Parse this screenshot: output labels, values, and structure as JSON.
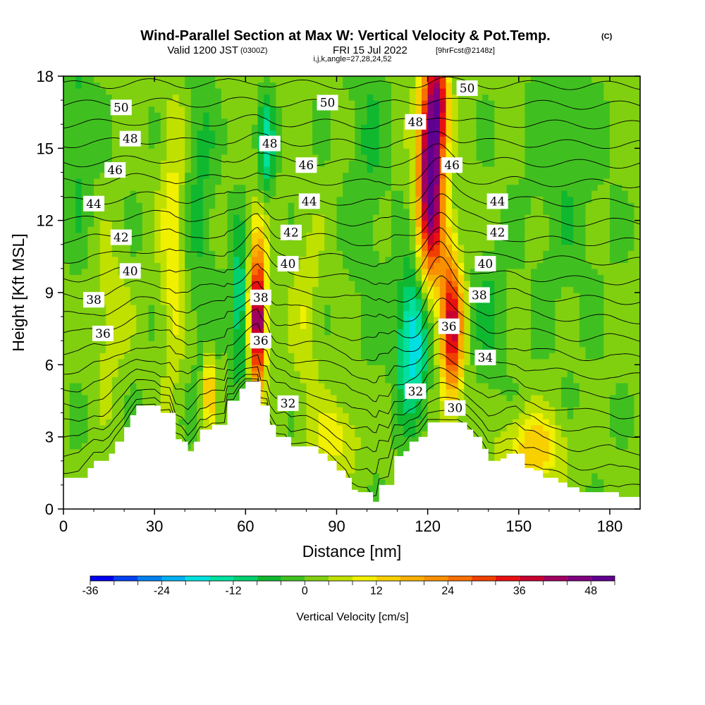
{
  "header": {
    "title": "Wind-Parallel Section at Max W: Vertical Velocity & Pot.Temp.",
    "copyright": "(C)",
    "valid_prefix": "Valid 1200 JST",
    "valid_utc": "(0300Z)",
    "valid_date": "FRI 15 Jul 2022",
    "forecast": "[9hrFcst@2148z]",
    "params": "i,j,k,angle=27,28,24,52"
  },
  "chart_data": {
    "type": "heatmap",
    "xlabel": "Distance [nm]",
    "ylabel": "Height [Kft MSL]",
    "xlim": [
      0,
      190
    ],
    "ylim": [
      0,
      18
    ],
    "x_ticks": [
      "0",
      "30",
      "60",
      "90",
      "120",
      "150",
      "180"
    ],
    "y_ticks": [
      "0",
      "3",
      "6",
      "9",
      "12",
      "15",
      "18"
    ],
    "colorbar": {
      "label": "Vertical Velocity [cm/s]",
      "min": -36,
      "max": 52,
      "step": 4,
      "tick_labels": [
        "-36",
        "-24",
        "-12",
        "0",
        "12",
        "24",
        "36",
        "48"
      ],
      "colors": [
        "#0000f0",
        "#0040f0",
        "#0080f0",
        "#00b0f0",
        "#00e0e0",
        "#00e0a0",
        "#00d070",
        "#10b830",
        "#40c020",
        "#80d010",
        "#c0e000",
        "#f0f000",
        "#f8d000",
        "#f8b000",
        "#f89000",
        "#f87000",
        "#f04000",
        "#e81010",
        "#c80030",
        "#a00060",
        "#800080",
        "#600090"
      ]
    },
    "terrain": [
      [
        0,
        1.3
      ],
      [
        5,
        1.3
      ],
      [
        8,
        1.7
      ],
      [
        10,
        2.0
      ],
      [
        13,
        2.0
      ],
      [
        15,
        2.3
      ],
      [
        17,
        2.8
      ],
      [
        20,
        3.4
      ],
      [
        22,
        3.9
      ],
      [
        24,
        4.3
      ],
      [
        30,
        4.3
      ],
      [
        32,
        4.0
      ],
      [
        35,
        4.0
      ],
      [
        37,
        2.9
      ],
      [
        39,
        2.8
      ],
      [
        41,
        2.4
      ],
      [
        43,
        2.8
      ],
      [
        45,
        3.3
      ],
      [
        47,
        3.3
      ],
      [
        49,
        3.5
      ],
      [
        53,
        3.5
      ],
      [
        54,
        4.5
      ],
      [
        56,
        4.5
      ],
      [
        58,
        5.0
      ],
      [
        60,
        5.3
      ],
      [
        64,
        5.3
      ],
      [
        65,
        4.3
      ],
      [
        67,
        4.3
      ],
      [
        68,
        3.5
      ],
      [
        70,
        3.0
      ],
      [
        73,
        3.0
      ],
      [
        75,
        2.6
      ],
      [
        80,
        2.6
      ],
      [
        84,
        2.3
      ],
      [
        87,
        2.0
      ],
      [
        90,
        1.6
      ],
      [
        93,
        1.3
      ],
      [
        95,
        0.8
      ],
      [
        97,
        0.7
      ],
      [
        100,
        0.7
      ],
      [
        102,
        0.3
      ],
      [
        103,
        0.3
      ],
      [
        104,
        1.0
      ],
      [
        107,
        1.0
      ],
      [
        109,
        2.2
      ],
      [
        112,
        2.4
      ],
      [
        114,
        2.8
      ],
      [
        117,
        3.0
      ],
      [
        120,
        3.6
      ],
      [
        130,
        3.6
      ],
      [
        133,
        3.3
      ],
      [
        135,
        3.0
      ],
      [
        138,
        2.5
      ],
      [
        140,
        2.0
      ],
      [
        142,
        2.0
      ],
      [
        144,
        2.1
      ],
      [
        146,
        2.3
      ],
      [
        149,
        2.3
      ],
      [
        152,
        1.7
      ],
      [
        155,
        1.6
      ],
      [
        158,
        1.3
      ],
      [
        163,
        1.1
      ],
      [
        166,
        0.9
      ],
      [
        170,
        0.7
      ],
      [
        180,
        0.7
      ],
      [
        183,
        0.5
      ],
      [
        190,
        0.5
      ]
    ],
    "w_field": {
      "background": 1,
      "features": [
        {
          "x": 121,
          "z": 14.5,
          "sx": 4,
          "sz": 4,
          "value": 50
        },
        {
          "x": 124,
          "z": 17,
          "sx": 3,
          "sz": 2,
          "value": 25
        },
        {
          "x": 128,
          "z": 7.5,
          "sx": 3.5,
          "sz": 3,
          "value": 36
        },
        {
          "x": 122,
          "z": 11,
          "sx": 6,
          "sz": 3,
          "value": 10
        },
        {
          "x": 64,
          "z": 7.5,
          "sx": 2.5,
          "sz": 2.5,
          "value": 42
        },
        {
          "x": 64,
          "z": 10,
          "sx": 3,
          "sz": 2.5,
          "value": 14
        },
        {
          "x": 48,
          "z": 5,
          "sx": 1.5,
          "sz": 1.5,
          "value": 20
        },
        {
          "x": 115,
          "z": 7,
          "sx": 5,
          "sz": 3,
          "value": -22
        },
        {
          "x": 58,
          "z": 8.5,
          "sx": 3,
          "sz": 3,
          "value": -14
        },
        {
          "x": 67,
          "z": 15,
          "sx": 2.5,
          "sz": 2,
          "value": -15
        },
        {
          "x": 36,
          "z": 11,
          "sx": 4,
          "sz": 6,
          "value": 10
        },
        {
          "x": 155,
          "z": 2.5,
          "sx": 10,
          "sz": 1.5,
          "value": 14
        },
        {
          "x": 90,
          "z": 3,
          "sx": 8,
          "sz": 1.5,
          "value": 9
        },
        {
          "x": 5,
          "z": 16,
          "sx": 5,
          "sz": 5,
          "value": -6
        },
        {
          "x": 100,
          "z": 15,
          "sx": 6,
          "sz": 7,
          "value": -5
        },
        {
          "x": 165,
          "z": 14,
          "sx": 12,
          "sz": 6,
          "value": -4
        },
        {
          "x": 45,
          "z": 13,
          "sx": 5,
          "sz": 6,
          "value": -6
        },
        {
          "x": 140,
          "z": 8,
          "sx": 5,
          "sz": 3,
          "value": -6
        },
        {
          "x": 80,
          "z": 8,
          "sx": 5,
          "sz": 4,
          "value": 6
        },
        {
          "x": 15,
          "z": 8,
          "sx": 6,
          "sz": 3,
          "value": 6
        }
      ]
    },
    "theta_contours": {
      "first": 30,
      "last": 51,
      "interval": 1,
      "labeled": [
        {
          "value": "50",
          "x": 19,
          "z": 16.7
        },
        {
          "value": "48",
          "x": 22,
          "z": 15.4
        },
        {
          "value": "46",
          "x": 17,
          "z": 14.1
        },
        {
          "value": "44",
          "x": 10,
          "z": 12.7
        },
        {
          "value": "42",
          "x": 19,
          "z": 11.3
        },
        {
          "value": "40",
          "x": 22,
          "z": 9.9
        },
        {
          "value": "38",
          "x": 10,
          "z": 8.7
        },
        {
          "value": "36",
          "x": 13,
          "z": 7.3
        },
        {
          "value": "50",
          "x": 87,
          "z": 16.9
        },
        {
          "value": "48",
          "x": 68,
          "z": 15.2
        },
        {
          "value": "46",
          "x": 80,
          "z": 14.3
        },
        {
          "value": "44",
          "x": 81,
          "z": 12.8
        },
        {
          "value": "42",
          "x": 75,
          "z": 11.5
        },
        {
          "value": "40",
          "x": 74,
          "z": 10.2
        },
        {
          "value": "38",
          "x": 65,
          "z": 8.8
        },
        {
          "value": "36",
          "x": 65,
          "z": 7.0
        },
        {
          "value": "32",
          "x": 74,
          "z": 4.4
        },
        {
          "value": "50",
          "x": 133,
          "z": 17.5
        },
        {
          "value": "48",
          "x": 116,
          "z": 16.1
        },
        {
          "value": "46",
          "x": 128,
          "z": 14.3
        },
        {
          "value": "44",
          "x": 143,
          "z": 12.8
        },
        {
          "value": "42",
          "x": 143,
          "z": 11.5
        },
        {
          "value": "40",
          "x": 139,
          "z": 10.2
        },
        {
          "value": "38",
          "x": 137,
          "z": 8.9
        },
        {
          "value": "36",
          "x": 127,
          "z": 7.6
        },
        {
          "value": "34",
          "x": 139,
          "z": 6.3
        },
        {
          "value": "32",
          "x": 116,
          "z": 4.9
        },
        {
          "value": "30",
          "x": 129,
          "z": 4.2
        }
      ]
    }
  }
}
